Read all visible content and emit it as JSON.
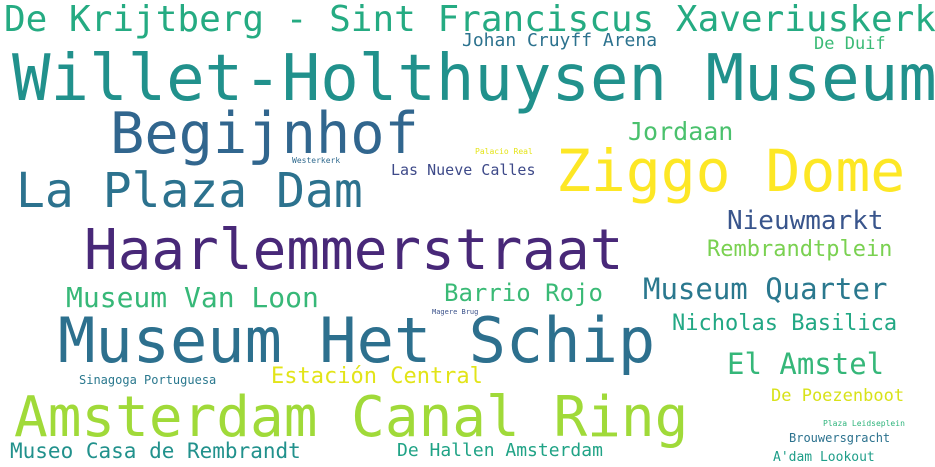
{
  "words": {
    "krijtberg": {
      "text": "De Krijtberg - Sint Franciscus Xaveriuskerk",
      "color": "#25ab82"
    },
    "cruyff": {
      "text": "Johan Cruyff Arena",
      "color": "#2c728e"
    },
    "duif": {
      "text": "De Duif",
      "color": "#3aba76"
    },
    "willet": {
      "text": "Willet-Holthuysen Museum",
      "color": "#21918c"
    },
    "begijnhof": {
      "text": "Begijnhof",
      "color": "#31668e"
    },
    "jordaan": {
      "text": "Jordaan",
      "color": "#4ac16d"
    },
    "palacio": {
      "text": "Palacio Real",
      "color": "#e5e419"
    },
    "westerkerk": {
      "text": "Westerkerk",
      "color": "#306a8e"
    },
    "ziggo": {
      "text": "Ziggo Dome",
      "color": "#fde725"
    },
    "nueve": {
      "text": "Las Nueve Calles",
      "color": "#3e4a89"
    },
    "plaza": {
      "text": "La Plaza Dam",
      "color": "#2c728e"
    },
    "nieuwmarkt": {
      "text": "Nieuwmarkt",
      "color": "#39558c"
    },
    "haarlem": {
      "text": "Haarlemmerstraat",
      "color": "#482878"
    },
    "rembrandtplein": {
      "text": "Rembrandtplein",
      "color": "#7ad151"
    },
    "vanloon": {
      "text": "Museum Van Loon",
      "color": "#37b878"
    },
    "barrio": {
      "text": "Barrio Rojo",
      "color": "#3aba76"
    },
    "quarter": {
      "text": "Museum Quarter",
      "color": "#2a788e"
    },
    "magere": {
      "text": "Magere Brug",
      "color": "#3b528b"
    },
    "schip": {
      "text": "Museum Het Schip",
      "color": "#2d708e"
    },
    "nicholas": {
      "text": "Nicholas Basilica",
      "color": "#22a884"
    },
    "amstel": {
      "text": "El Amstel",
      "color": "#35b779"
    },
    "sinagoga": {
      "text": "Sinagoga Portuguesa",
      "color": "#2a788e"
    },
    "estacion": {
      "text": "Estación Central",
      "color": "#e2e418"
    },
    "poezen": {
      "text": "De Poezenboot",
      "color": "#d8e219"
    },
    "ring": {
      "text": "Amsterdam Canal Ring",
      "color": "#a0da39"
    },
    "leidse": {
      "text": "Plaza Leidseplein",
      "color": "#2fb47c"
    },
    "brouwers": {
      "text": "Brouwersgracht",
      "color": "#2c728e"
    },
    "casa": {
      "text": "Museo Casa de Rembrandt",
      "color": "#21918c"
    },
    "hallen": {
      "text": "De Hallen Amsterdam",
      "color": "#20a386"
    },
    "adam": {
      "text": "A'dam Lookout",
      "color": "#1f9e89"
    }
  }
}
